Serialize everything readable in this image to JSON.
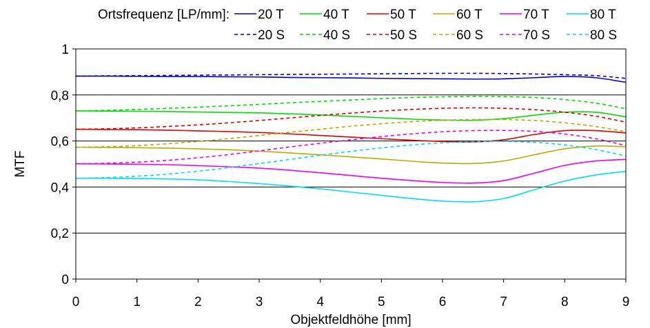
{
  "chart_data": {
    "type": "line",
    "title": "",
    "xlabel": "Objektfeldhöhe [mm]",
    "ylabel": "MTF",
    "xlim": [
      0,
      9
    ],
    "ylim": [
      0,
      1
    ],
    "x_ticks": [
      "0",
      "1",
      "2",
      "3",
      "4",
      "5",
      "6",
      "7",
      "8",
      "9"
    ],
    "y_ticks": [
      "0",
      "0,2",
      "0,4",
      "0,6",
      "0,8",
      "1"
    ],
    "grid": "horizontal",
    "legend_title": "Ortsfrequenz [LP/mm]:",
    "legend_position": "top",
    "x": [
      0,
      0.5,
      1,
      1.5,
      2,
      2.5,
      3,
      3.5,
      4,
      4.5,
      5,
      5.5,
      6,
      6.5,
      7,
      7.5,
      8,
      8.5,
      9
    ],
    "series": [
      {
        "name": "20 T",
        "color": "#0000cc",
        "dash": false,
        "values": [
          0.882,
          0.882,
          0.881,
          0.88,
          0.88,
          0.879,
          0.878,
          0.876,
          0.875,
          0.874,
          0.872,
          0.871,
          0.87,
          0.869,
          0.87,
          0.875,
          0.88,
          0.875,
          0.855
        ]
      },
      {
        "name": "40 T",
        "color": "#00dd00",
        "dash": false,
        "values": [
          0.731,
          0.73,
          0.729,
          0.728,
          0.726,
          0.724,
          0.722,
          0.718,
          0.713,
          0.707,
          0.701,
          0.695,
          0.691,
          0.69,
          0.697,
          0.712,
          0.725,
          0.725,
          0.705
        ]
      },
      {
        "name": "50 T",
        "color": "#dd0000",
        "dash": false,
        "values": [
          0.651,
          0.65,
          0.649,
          0.647,
          0.644,
          0.641,
          0.637,
          0.631,
          0.624,
          0.617,
          0.61,
          0.603,
          0.598,
          0.596,
          0.605,
          0.628,
          0.645,
          0.645,
          0.635
        ]
      },
      {
        "name": "60 T",
        "color": "#bbaa00",
        "dash": false,
        "values": [
          0.573,
          0.572,
          0.571,
          0.569,
          0.566,
          0.562,
          0.556,
          0.548,
          0.54,
          0.531,
          0.522,
          0.512,
          0.504,
          0.502,
          0.513,
          0.54,
          0.566,
          0.578,
          0.575
        ]
      },
      {
        "name": "70 T",
        "color": "#ee00ee",
        "dash": false,
        "values": [
          0.501,
          0.5,
          0.499,
          0.497,
          0.493,
          0.488,
          0.482,
          0.473,
          0.462,
          0.45,
          0.438,
          0.428,
          0.42,
          0.417,
          0.428,
          0.46,
          0.494,
          0.513,
          0.52
        ]
      },
      {
        "name": "80 T",
        "color": "#00ddee",
        "dash": false,
        "values": [
          0.438,
          0.438,
          0.437,
          0.435,
          0.431,
          0.424,
          0.415,
          0.404,
          0.392,
          0.378,
          0.364,
          0.35,
          0.339,
          0.336,
          0.35,
          0.388,
          0.426,
          0.452,
          0.468
        ]
      },
      {
        "name": "20 S",
        "color": "#0000cc",
        "dash": true,
        "values": [
          0.882,
          0.883,
          0.884,
          0.885,
          0.886,
          0.887,
          0.888,
          0.889,
          0.89,
          0.891,
          0.892,
          0.893,
          0.894,
          0.894,
          0.893,
          0.891,
          0.888,
          0.884,
          0.872
        ]
      },
      {
        "name": "40 S",
        "color": "#00dd00",
        "dash": true,
        "values": [
          0.731,
          0.733,
          0.737,
          0.742,
          0.747,
          0.753,
          0.759,
          0.766,
          0.772,
          0.778,
          0.784,
          0.789,
          0.792,
          0.794,
          0.793,
          0.789,
          0.78,
          0.765,
          0.74
        ]
      },
      {
        "name": "50 S",
        "color": "#dd0000",
        "dash": true,
        "values": [
          0.651,
          0.653,
          0.657,
          0.663,
          0.67,
          0.679,
          0.689,
          0.7,
          0.711,
          0.721,
          0.73,
          0.737,
          0.742,
          0.744,
          0.742,
          0.736,
          0.725,
          0.708,
          0.682
        ]
      },
      {
        "name": "60 S",
        "color": "#bbaa00",
        "dash": true,
        "values": [
          0.573,
          0.575,
          0.58,
          0.588,
          0.598,
          0.61,
          0.624,
          0.638,
          0.651,
          0.664,
          0.675,
          0.684,
          0.69,
          0.693,
          0.693,
          0.689,
          0.679,
          0.663,
          0.64
        ]
      },
      {
        "name": "70 S",
        "color": "#ee00ee",
        "dash": true,
        "values": [
          0.501,
          0.503,
          0.508,
          0.516,
          0.527,
          0.541,
          0.557,
          0.574,
          0.59,
          0.605,
          0.619,
          0.631,
          0.64,
          0.645,
          0.646,
          0.642,
          0.63,
          0.61,
          0.58
        ]
      },
      {
        "name": "80 S",
        "color": "#00ddee",
        "dash": true,
        "values": [
          0.438,
          0.441,
          0.447,
          0.456,
          0.469,
          0.484,
          0.502,
          0.52,
          0.538,
          0.555,
          0.57,
          0.583,
          0.592,
          0.597,
          0.598,
          0.594,
          0.583,
          0.563,
          0.535
        ]
      }
    ]
  }
}
